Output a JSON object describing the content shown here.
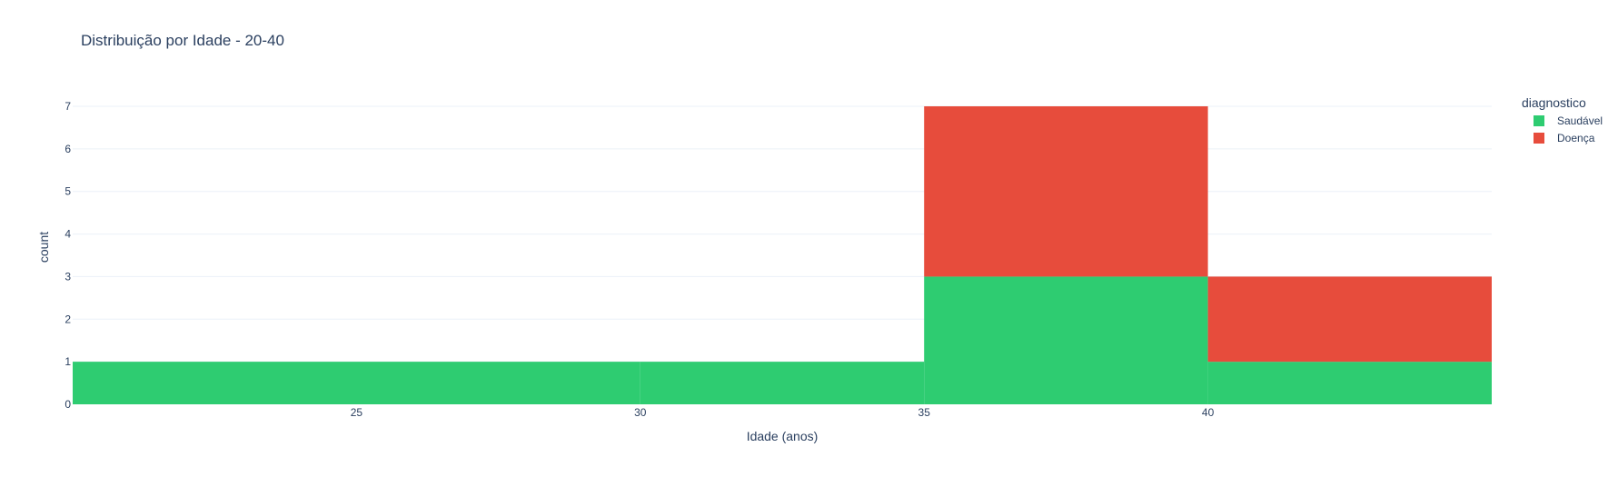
{
  "chart_data": {
    "type": "bar",
    "barmode": "stack",
    "title": "Distribuição por Idade - 20-40",
    "xlabel": "Idade (anos)",
    "ylabel": "count",
    "x_bins": [
      [
        20,
        30
      ],
      [
        30,
        35
      ],
      [
        35,
        40
      ],
      [
        40,
        45
      ]
    ],
    "xlim": [
      20,
      45
    ],
    "ylim": [
      0,
      7
    ],
    "x_ticks": [
      25,
      30,
      35,
      40
    ],
    "x_tick_labels": [
      "25",
      "30",
      "35",
      "40"
    ],
    "y_ticks": [
      0,
      1,
      2,
      3,
      4,
      5,
      6,
      7
    ],
    "y_tick_labels": [
      "0",
      "1",
      "2",
      "3",
      "4",
      "5",
      "6",
      "7"
    ],
    "grid": true,
    "legend_title": "diagnostico",
    "legend_position": "right",
    "series": [
      {
        "name": "Saudável",
        "color": "#2ecc71",
        "values": [
          1,
          1,
          3,
          1
        ]
      },
      {
        "name": "Doença",
        "color": "#e74c3c",
        "values": [
          0,
          0,
          4,
          2
        ]
      }
    ]
  }
}
